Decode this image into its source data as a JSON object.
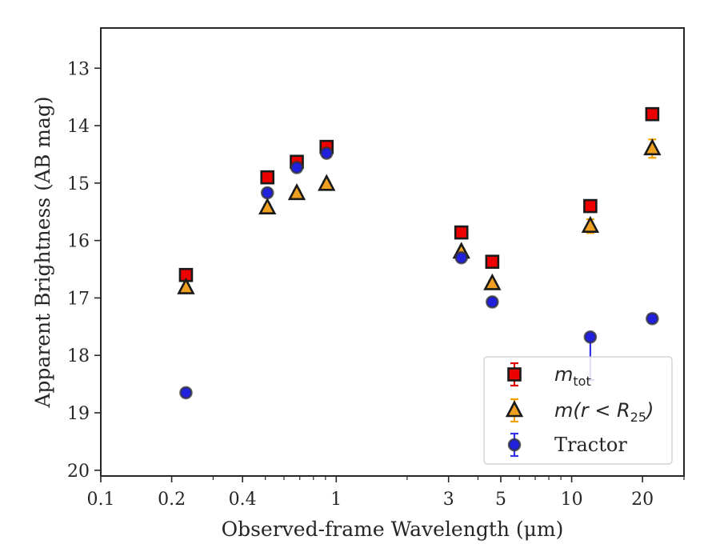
{
  "chart_data": {
    "type": "scatter",
    "xlabel": "Observed-frame Wavelength (μm)",
    "ylabel": "Apparent Brightness (AB mag)",
    "xscale": "log",
    "xlim": [
      0.1,
      30
    ],
    "ylim": [
      20.1,
      12.3
    ],
    "y_inverted": true,
    "xticks": [
      0.1,
      0.2,
      0.4,
      1,
      3,
      5,
      10,
      20
    ],
    "xtick_labels": [
      "0.1",
      "0.2",
      "0.4",
      "1",
      "3",
      "5",
      "10",
      "20"
    ],
    "yticks": [
      13,
      14,
      15,
      16,
      17,
      18,
      19,
      20
    ],
    "ytick_labels": [
      "13",
      "14",
      "15",
      "16",
      "17",
      "18",
      "19",
      "20"
    ],
    "grid": false,
    "legend_position": "lower-right",
    "series": [
      {
        "key": "mtot",
        "legend_main": "m",
        "legend_sub": "tot",
        "legend_suffix": "",
        "marker": "square",
        "fill": "#ee0000",
        "errcolor": "#dd0000",
        "points": [
          {
            "x": 0.23,
            "y": 16.6,
            "err": 0.05
          },
          {
            "x": 0.51,
            "y": 14.9,
            "err": 0.05
          },
          {
            "x": 0.68,
            "y": 14.63,
            "err": 0.05
          },
          {
            "x": 0.91,
            "y": 14.37,
            "err": 0.05
          },
          {
            "x": 3.4,
            "y": 15.86,
            "err": 0.05
          },
          {
            "x": 4.6,
            "y": 16.37,
            "err": 0.05
          },
          {
            "x": 12.0,
            "y": 15.4,
            "err": 0.07
          },
          {
            "x": 22.0,
            "y": 13.8,
            "err": 0.06
          }
        ]
      },
      {
        "key": "mr25",
        "legend_main": "m(r < R",
        "legend_sub": "25",
        "legend_suffix": ")",
        "marker": "triangle",
        "fill": "#f0a020",
        "errcolor": "#f0a000",
        "points": [
          {
            "x": 0.23,
            "y": 16.82,
            "err": 0.05
          },
          {
            "x": 0.51,
            "y": 15.43,
            "err": 0.05
          },
          {
            "x": 0.68,
            "y": 15.18,
            "err": 0.05
          },
          {
            "x": 0.91,
            "y": 15.02,
            "err": 0.05
          },
          {
            "x": 3.4,
            "y": 16.2,
            "err": 0.05
          },
          {
            "x": 4.6,
            "y": 16.75,
            "err": 0.05
          },
          {
            "x": 12.0,
            "y": 15.75,
            "err": 0.12
          },
          {
            "x": 22.0,
            "y": 14.4,
            "err": 0.16
          }
        ]
      },
      {
        "key": "tractor",
        "legend_main": "Tractor",
        "legend_sub": "",
        "legend_suffix": "",
        "marker": "circle",
        "fill": "#2020dd",
        "errcolor": "#3333ee",
        "points": [
          {
            "x": 0.23,
            "y": 18.65,
            "err": 0.06
          },
          {
            "x": 0.51,
            "y": 15.17,
            "err": 0.06
          },
          {
            "x": 0.68,
            "y": 14.73,
            "err": 0.06
          },
          {
            "x": 0.91,
            "y": 14.48,
            "err": 0.06
          },
          {
            "x": 3.4,
            "y": 16.3,
            "err": 0.07
          },
          {
            "x": 4.6,
            "y": 17.07,
            "err": 0.06
          },
          {
            "x": 12.0,
            "y": 17.68,
            "err_low": 0.0,
            "err_high": 0.75
          },
          {
            "x": 22.0,
            "y": 17.36,
            "err": 0.07
          }
        ]
      }
    ]
  }
}
